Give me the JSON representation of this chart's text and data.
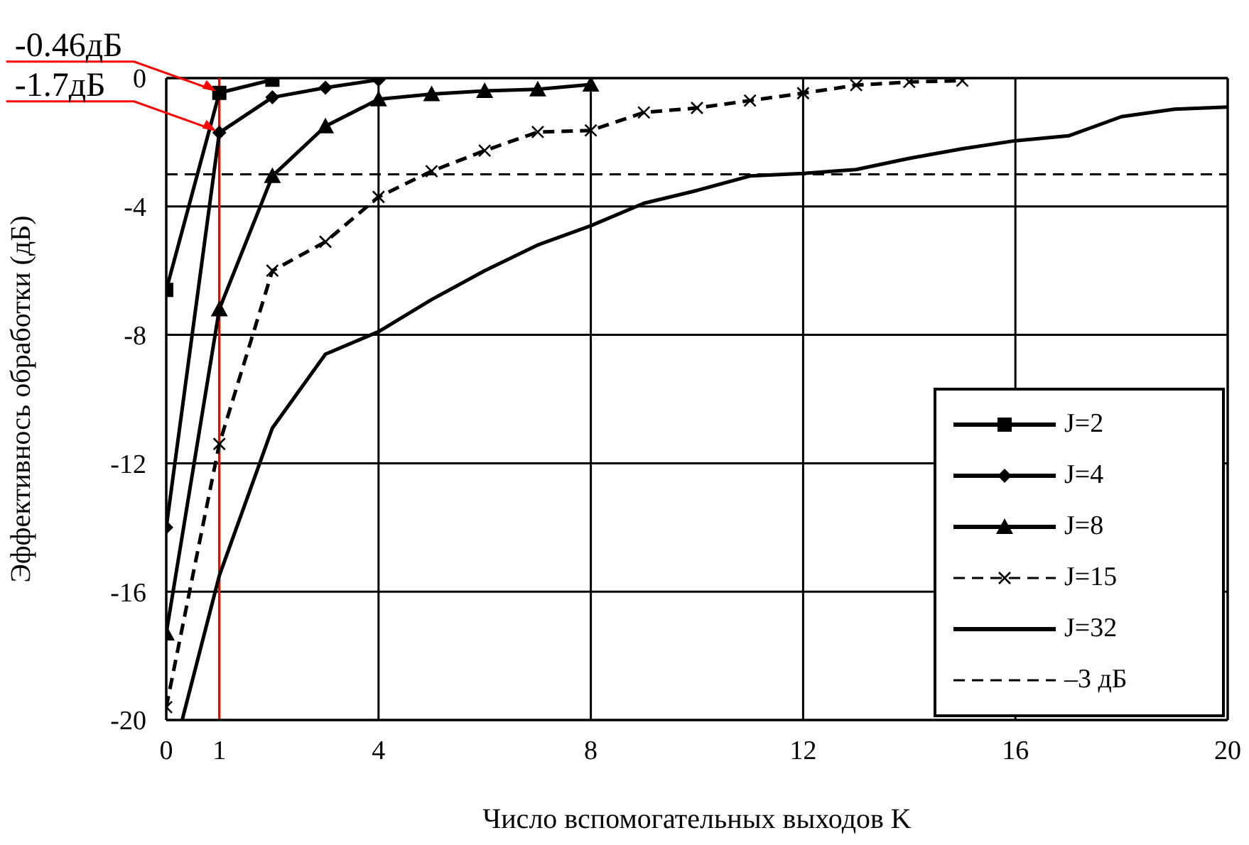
{
  "chart_data": {
    "type": "line",
    "xlabel": "Число вспомогательных выходов K",
    "ylabel": "Эффективнось обработки (дБ)",
    "xlim": [
      0,
      20
    ],
    "xticks": [
      0,
      1,
      4,
      8,
      12,
      16,
      20
    ],
    "ylim": [
      -20,
      0
    ],
    "yticks": [
      -20,
      -16,
      -12,
      -8,
      -4,
      0
    ],
    "grid": true,
    "legend": "bottom right",
    "series": [
      {
        "name": "J=2",
        "color": "#000000",
        "marker": "square",
        "x": [
          0,
          1,
          2
        ],
        "values": [
          -6.6,
          -0.46,
          -0.05
        ]
      },
      {
        "name": "J=4",
        "color": "#000000",
        "marker": "diamond",
        "x": [
          0,
          1,
          2,
          3,
          4
        ],
        "values": [
          -14,
          -1.7,
          -0.6,
          -0.3,
          -0.05
        ]
      },
      {
        "name": "J=8",
        "color": "#000000",
        "marker": "triangle",
        "x": [
          0,
          1,
          2,
          3,
          4,
          5,
          6,
          7,
          8
        ],
        "values": [
          -17.3,
          -7.2,
          -3.05,
          -1.5,
          -0.66,
          -0.5,
          -0.4,
          -0.35,
          -0.2
        ]
      },
      {
        "name": "J=15",
        "color": "#000000",
        "marker": "cross",
        "line_style": "dashed",
        "x": [
          0,
          1,
          2,
          3,
          4,
          5,
          6,
          7,
          8,
          9,
          10,
          11,
          12,
          13,
          14,
          15
        ],
        "values": [
          -19.6,
          -11.4,
          -6,
          -5.1,
          -3.7,
          -2.9,
          -2.26,
          -1.68,
          -1.63,
          -1.07,
          -0.93,
          -0.7,
          -0.47,
          -0.22,
          -0.12,
          -0.08
        ]
      },
      {
        "name": "J=32",
        "color": "#000000",
        "marker": "none",
        "x": [
          0.3,
          1,
          2,
          3,
          4,
          5,
          6,
          7,
          8,
          9,
          10,
          11,
          12,
          13,
          14,
          15,
          16,
          17,
          18,
          19,
          20
        ],
        "values": [
          -20,
          -15.5,
          -10.9,
          -8.6,
          -7.9,
          -6.9,
          -6,
          -5.2,
          -4.6,
          -3.9,
          -3.5,
          -3.05,
          -2.97,
          -2.85,
          -2.5,
          -2.2,
          -1.95,
          -1.8,
          -1.2,
          -0.97,
          -0.9
        ]
      }
    ],
    "ref_lines": [
      {
        "axis": "y",
        "value": -3,
        "label": "–3 дБ",
        "line_style": "dashed",
        "color": "#000000"
      },
      {
        "axis": "x",
        "value": 1,
        "color": "#ff0000"
      }
    ],
    "annotations": [
      {
        "text": "-0.46дБ",
        "x": 1,
        "y": -0.46
      },
      {
        "text": "-1.7дБ",
        "x": 1,
        "y": -1.7
      }
    ]
  }
}
